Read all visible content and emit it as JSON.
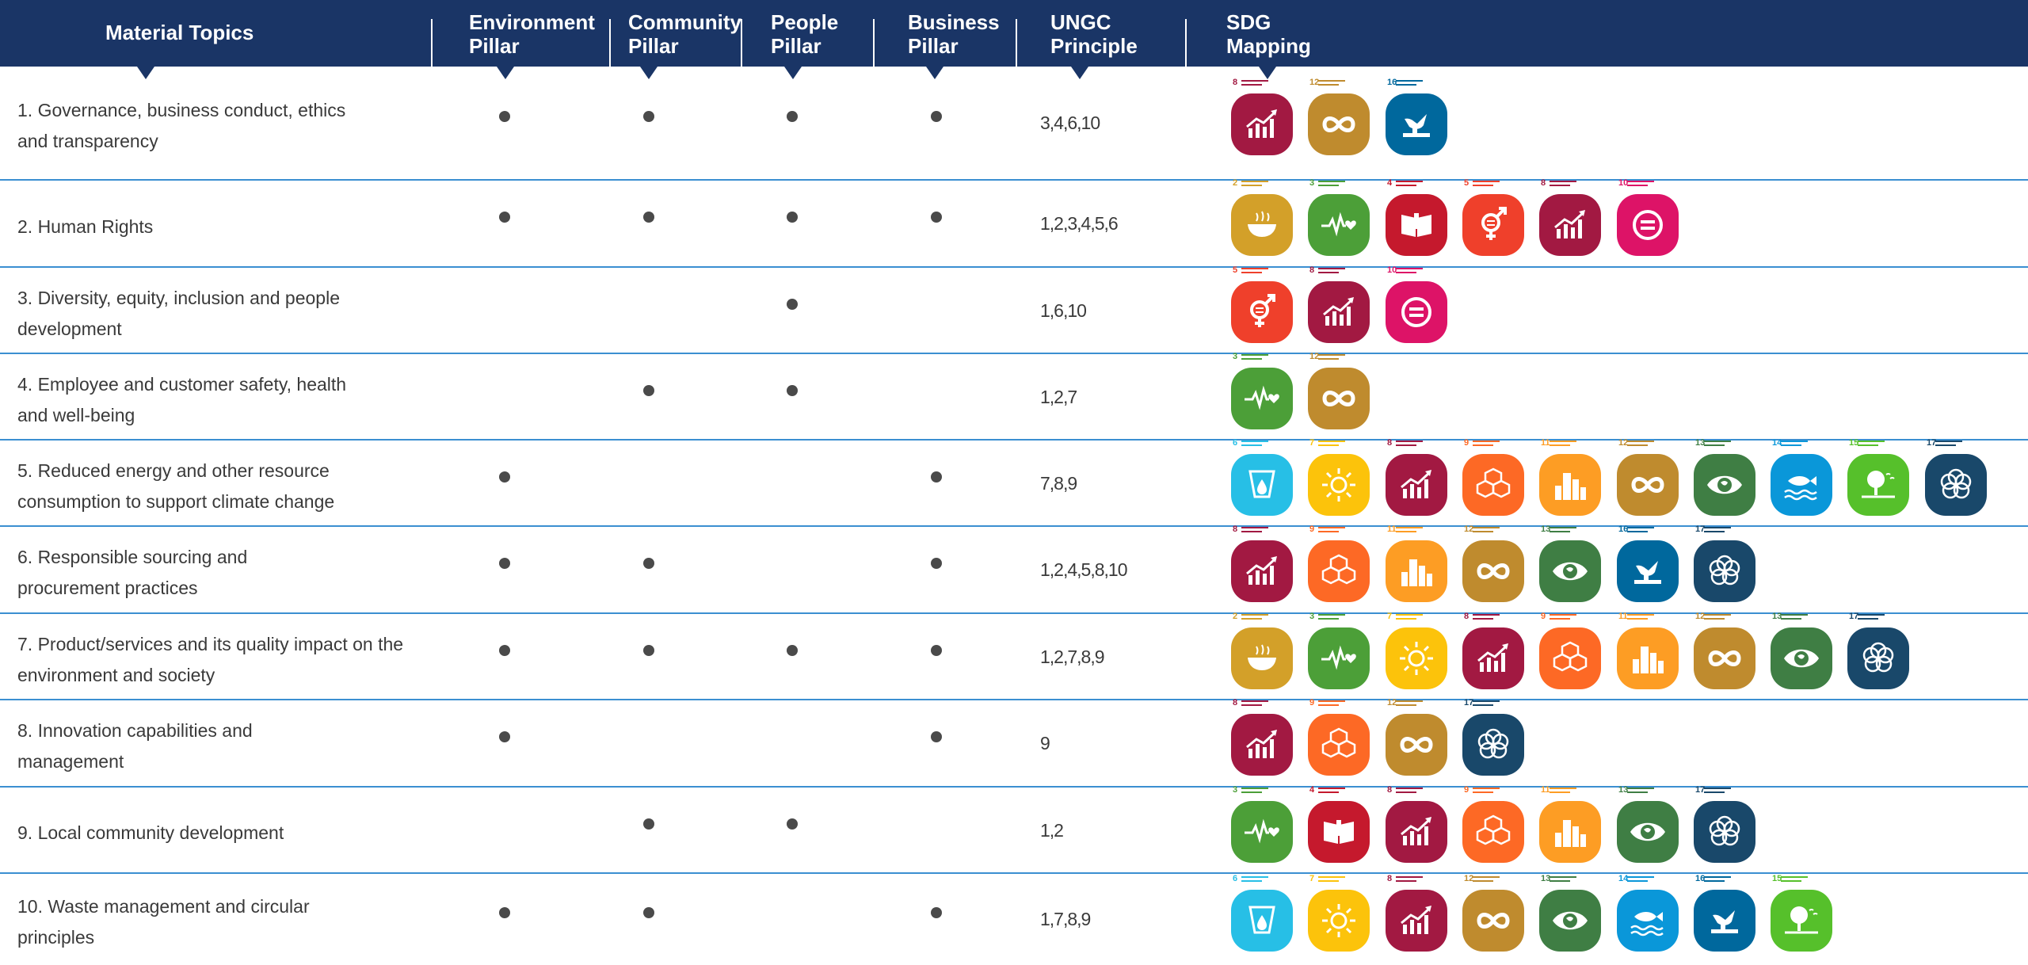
{
  "header": {
    "material_topics": "Material Topics",
    "environment_pillar": "Environment\nPillar",
    "community_pillar": "Community\nPillar",
    "people_pillar": "People\nPillar",
    "business_pillar": "Business\nPillar",
    "ungc_principle": "UNGC\nPrinciple",
    "sdg_mapping": "SDG\nMapping"
  },
  "colors": {
    "header_bg": "#1a3566",
    "row_divider": "#3b8fd1",
    "dot": "#4a4a4a"
  },
  "sdg_goals": {
    "2": {
      "color": "#d3a029",
      "icon": "bowl-icon"
    },
    "3": {
      "color": "#4c9f38",
      "icon": "heartbeat-icon"
    },
    "4": {
      "color": "#c5192d",
      "icon": "book-icon"
    },
    "5": {
      "color": "#ef402b",
      "icon": "gender-icon"
    },
    "6": {
      "color": "#27bfe6",
      "icon": "water-drop-icon"
    },
    "7": {
      "color": "#fcc30b",
      "icon": "sun-icon"
    },
    "8": {
      "color": "#a21942",
      "icon": "growth-chart-icon"
    },
    "9": {
      "color": "#fd6925",
      "icon": "cubes-icon"
    },
    "10": {
      "color": "#dd1367",
      "icon": "equality-icon"
    },
    "11": {
      "color": "#fd9d24",
      "icon": "city-icon"
    },
    "12": {
      "color": "#bf8b2e",
      "icon": "infinity-icon"
    },
    "13": {
      "color": "#3f7e44",
      "icon": "eye-globe-icon"
    },
    "14": {
      "color": "#0a97d9",
      "icon": "fish-icon"
    },
    "15": {
      "color": "#56c02b",
      "icon": "tree-icon"
    },
    "16": {
      "color": "#00689d",
      "icon": "dove-icon"
    },
    "17": {
      "color": "#19486a",
      "icon": "rings-icon"
    }
  },
  "rows": [
    {
      "topic": "1. Governance, business conduct, ethics\nand transparency",
      "environment": true,
      "community": true,
      "people": true,
      "business": true,
      "ungc": "3,4,6,10",
      "sdgs": [
        "8",
        "12",
        "16"
      ]
    },
    {
      "topic": "2. Human Rights",
      "environment": true,
      "community": true,
      "people": true,
      "business": true,
      "ungc": "1,2,3,4,5,6",
      "sdgs": [
        "2",
        "3",
        "4",
        "5",
        "8",
        "10"
      ]
    },
    {
      "topic": "3. Diversity, equity, inclusion and people\ndevelopment",
      "environment": false,
      "community": false,
      "people": true,
      "business": false,
      "ungc": "1,6,10",
      "sdgs": [
        "5",
        "8",
        "10"
      ]
    },
    {
      "topic": "4. Employee and customer safety, health\nand well-being",
      "environment": false,
      "community": true,
      "people": true,
      "business": false,
      "ungc": "1,2,7",
      "sdgs": [
        "3",
        "12"
      ]
    },
    {
      "topic": "5. Reduced energy and other resource\nconsumption to support climate change",
      "environment": true,
      "community": false,
      "people": false,
      "business": true,
      "ungc": "7,8,9",
      "sdgs": [
        "6",
        "7",
        "8",
        "9",
        "11",
        "12",
        "13",
        "14",
        "15",
        "17"
      ]
    },
    {
      "topic": "6. Responsible sourcing and\nprocurement practices",
      "environment": true,
      "community": true,
      "people": false,
      "business": true,
      "ungc": "1,2,4,5,8,10",
      "sdgs": [
        "8",
        "9",
        "11",
        "12",
        "13",
        "16",
        "17"
      ]
    },
    {
      "topic": "7. Product/services and its quality impact on  the\nenvironment and society",
      "environment": true,
      "community": true,
      "people": true,
      "business": true,
      "ungc": "1,2,7,8,9",
      "sdgs": [
        "2",
        "3",
        "7",
        "8",
        "9",
        "11",
        "12",
        "13",
        "17"
      ]
    },
    {
      "topic": "8. Innovation capabilities and\nmanagement",
      "environment": true,
      "community": false,
      "people": false,
      "business": true,
      "ungc": "9",
      "sdgs": [
        "8",
        "9",
        "12",
        "17"
      ]
    },
    {
      "topic": "9. Local community development",
      "environment": false,
      "community": true,
      "people": true,
      "business": false,
      "ungc": "1,2",
      "sdgs": [
        "3",
        "4",
        "8",
        "9",
        "11",
        "13",
        "17"
      ]
    },
    {
      "topic": "10. Waste management and circular\nprinciples",
      "environment": true,
      "community": true,
      "people": false,
      "business": true,
      "ungc": "1,7,8,9",
      "sdgs": [
        "6",
        "7",
        "8",
        "12",
        "13",
        "14",
        "16",
        "15"
      ]
    }
  ]
}
